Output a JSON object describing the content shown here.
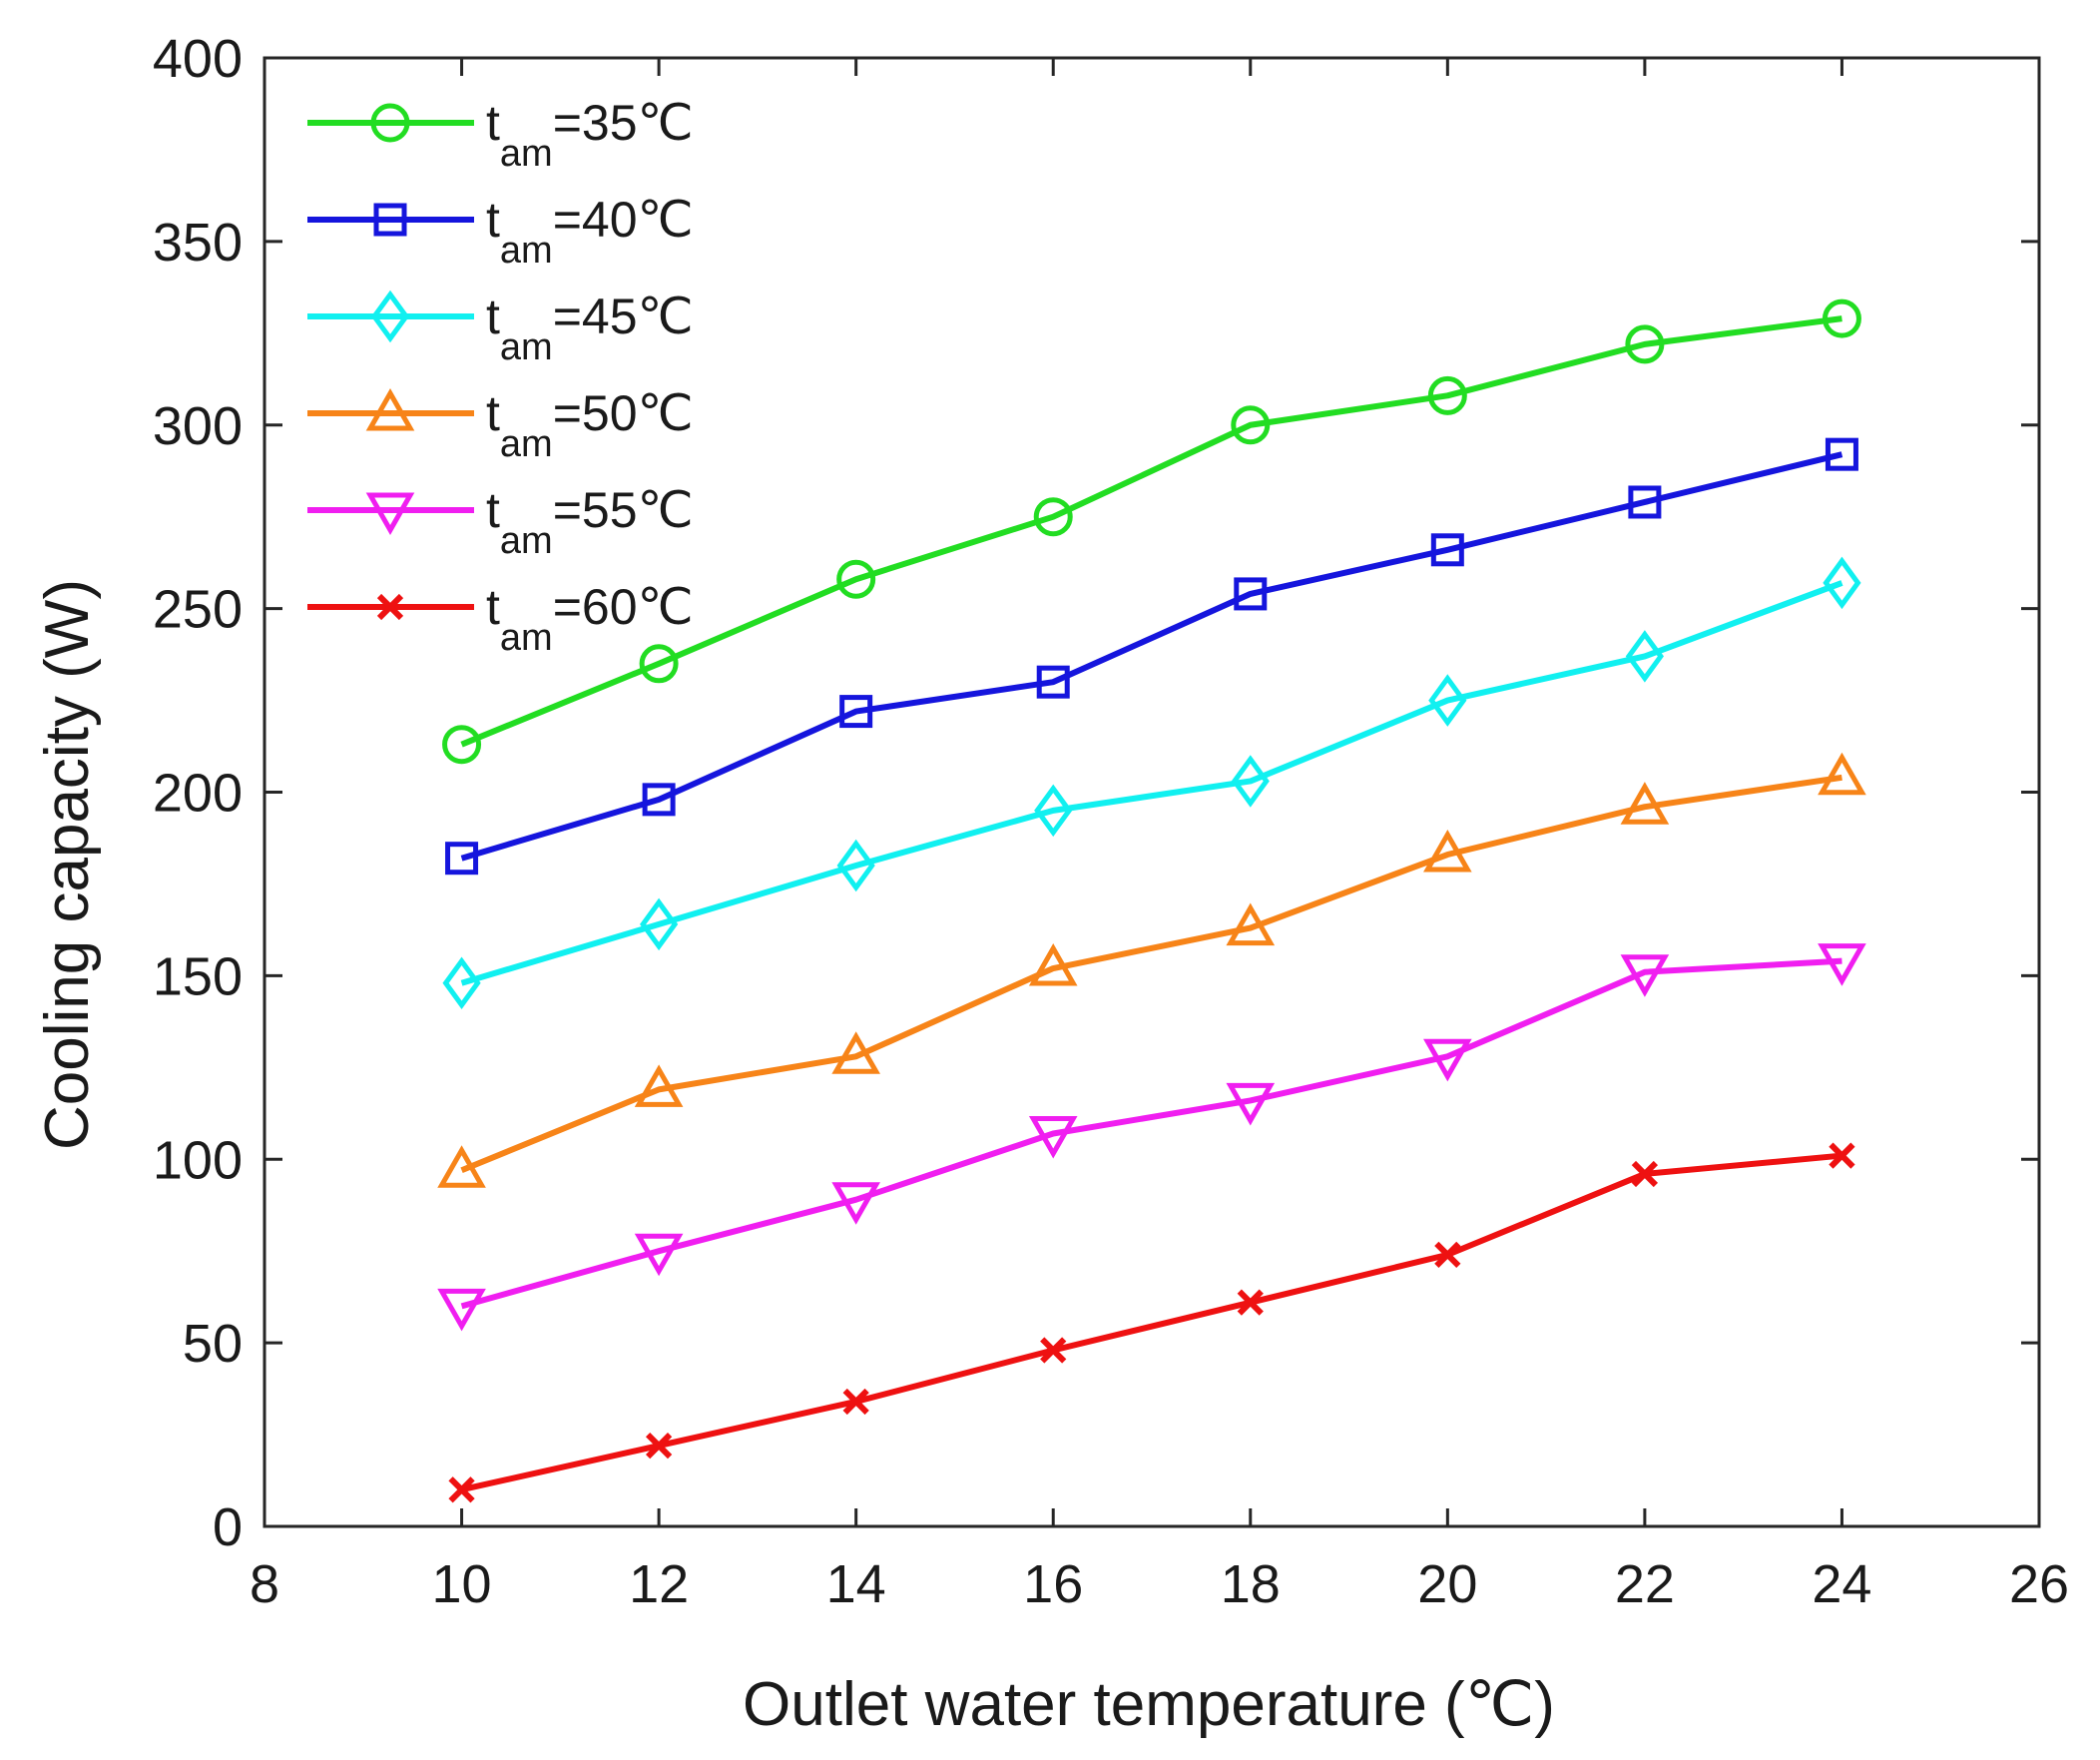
{
  "chart_data": {
    "type": "line",
    "title": "",
    "xlabel": "Outlet water temperature (℃)",
    "ylabel": "Cooling capacity (W)",
    "xlim": [
      8,
      26
    ],
    "ylim": [
      0,
      400
    ],
    "xticks": [
      8,
      10,
      12,
      14,
      16,
      18,
      20,
      22,
      24,
      26
    ],
    "yticks": [
      0,
      50,
      100,
      150,
      200,
      250,
      300,
      350,
      400
    ],
    "grid": false,
    "legend_position": "top-left",
    "x": [
      10,
      12,
      14,
      16,
      18,
      20,
      22,
      24
    ],
    "series": [
      {
        "name": "t",
        "name_sub": "am",
        "name_rest": "=35℃",
        "color": "#22dd22",
        "marker": "circle",
        "values": [
          213,
          235,
          258,
          275,
          300,
          308,
          322,
          329
        ]
      },
      {
        "name": "t",
        "name_sub": "am",
        "name_rest": "=40℃",
        "color": "#1515dd",
        "marker": "square",
        "values": [
          182,
          198,
          222,
          230,
          254,
          266,
          279,
          292
        ]
      },
      {
        "name": "t",
        "name_sub": "am",
        "name_rest": "=45℃",
        "color": "#11f0f0",
        "marker": "diamond",
        "values": [
          148,
          164,
          180,
          195,
          203,
          225,
          237,
          257
        ]
      },
      {
        "name": "t",
        "name_sub": "am",
        "name_rest": "=50℃",
        "color": "#f78418",
        "marker": "triangle-up",
        "values": [
          97,
          119,
          128,
          152,
          163,
          183,
          196,
          204
        ]
      },
      {
        "name": "t",
        "name_sub": "am",
        "name_rest": "=55℃",
        "color": "#f01ef0",
        "marker": "triangle-down",
        "values": [
          60,
          75,
          89,
          107,
          116,
          128,
          151,
          154
        ]
      },
      {
        "name": "t",
        "name_sub": "am",
        "name_rest": "=60℃",
        "color": "#ee1111",
        "marker": "x",
        "values": [
          10,
          22,
          34,
          48,
          61,
          74,
          96,
          101
        ]
      }
    ]
  }
}
